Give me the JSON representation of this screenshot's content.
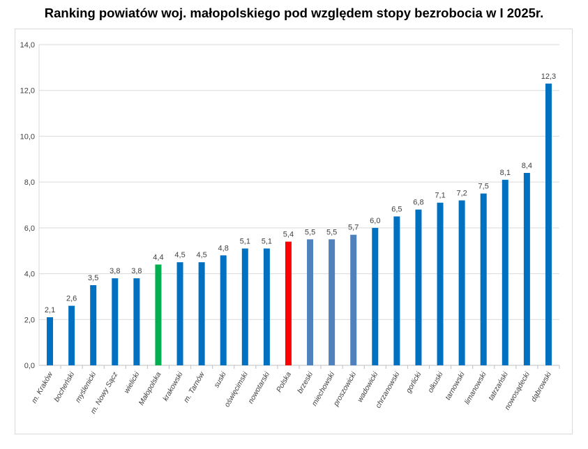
{
  "title": "Ranking powiatów woj. małopolskiego pod względem stopy bezrobocia w I 2025r.",
  "colors": {
    "default": "#0070c0",
    "malopolska": "#00b050",
    "polska": "#ff0000",
    "muted": "#4f81bd",
    "axis": "#bfbfbf",
    "grid": "#d9d9d9"
  },
  "chart_data": {
    "type": "bar",
    "title": "Ranking powiatów woj. małopolskiego pod względem stopy bezrobocia w I 2025r.",
    "xlabel": "",
    "ylabel": "",
    "ylim": [
      0,
      14
    ],
    "yticks": [
      0,
      2,
      4,
      6,
      8,
      10,
      12,
      14
    ],
    "ytick_labels": [
      "0,0",
      "2,0",
      "4,0",
      "6,0",
      "8,0",
      "10,0",
      "12,0",
      "14,0"
    ],
    "grid": true,
    "legend": "none",
    "categories": [
      "m. Kraków",
      "bocheński",
      "myślenicki",
      "m. Nowy Sącz",
      "wielicki",
      "Małopolska",
      "krakowski",
      "m. Tarnów",
      "suski",
      "oświęcimski",
      "nowotarski",
      "Polska",
      "brzeski",
      "miechowski",
      "proszowicki",
      "wadowicki",
      "chrzanowski",
      "gorlicki",
      "olkuski",
      "tarnowski",
      "limanowski",
      "tatrzański",
      "nowosądecki",
      "dąbrowski"
    ],
    "values": [
      2.1,
      2.6,
      3.5,
      3.8,
      3.8,
      4.4,
      4.5,
      4.5,
      4.8,
      5.1,
      5.1,
      5.4,
      5.5,
      5.5,
      5.7,
      6.0,
      6.5,
      6.8,
      7.1,
      7.2,
      7.5,
      8.1,
      8.4,
      12.3
    ],
    "value_labels": [
      "2,1",
      "2,6",
      "3,5",
      "3,8",
      "3,8",
      "4,4",
      "4,5",
      "4,5",
      "4,8",
      "5,1",
      "5,1",
      "5,4",
      "5,5",
      "5,5",
      "5,7",
      "6,0",
      "6,5",
      "6,8",
      "7,1",
      "7,2",
      "7,5",
      "8,1",
      "8,4",
      "12,3"
    ],
    "bar_colors": [
      "#0070c0",
      "#0070c0",
      "#0070c0",
      "#0070c0",
      "#0070c0",
      "#00b050",
      "#0070c0",
      "#0070c0",
      "#0070c0",
      "#0070c0",
      "#0070c0",
      "#ff0000",
      "#4f81bd",
      "#4f81bd",
      "#4f81bd",
      "#0070c0",
      "#0070c0",
      "#0070c0",
      "#0070c0",
      "#0070c0",
      "#0070c0",
      "#0070c0",
      "#0070c0",
      "#0070c0"
    ]
  }
}
